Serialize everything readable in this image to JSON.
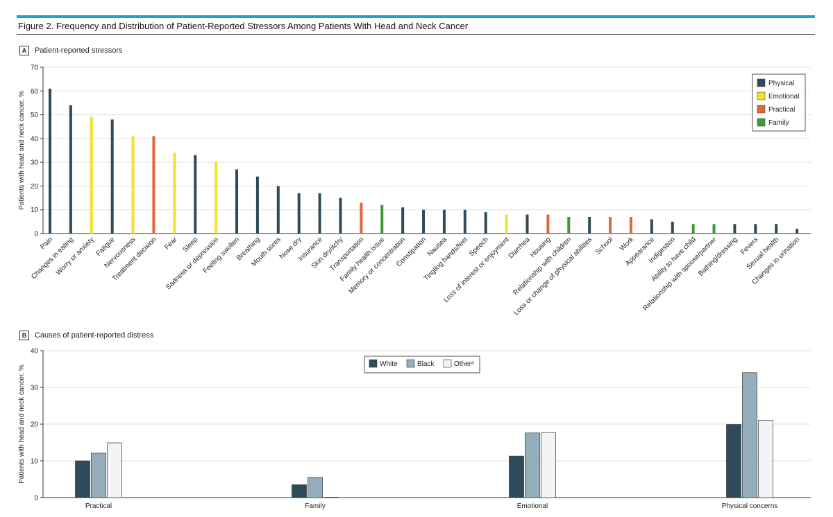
{
  "figure_title": "Figure 2. Frequency and Distribution of Patient-Reported Stressors Among Patients With Head and Neck Cancer",
  "colors": {
    "accent_bar": "#1ba3d8",
    "Physical": "#2f4b5b",
    "Emotional": "#f2e22a",
    "Practical": "#e2663c",
    "Family": "#3d9a36",
    "White": "#2f4b5b",
    "Black": "#94aebc",
    "Other": "#f3f4f5"
  },
  "panel_a": {
    "letter": "A",
    "heading": "Patient-reported stressors"
  },
  "panel_b": {
    "letter": "B",
    "heading": "Causes of patient-reported distress"
  },
  "chart_data": [
    {
      "type": "bar",
      "title": "Patient-reported stressors",
      "ylabel": "Patients with head and neck cancer, %",
      "ylim": [
        0,
        70
      ],
      "yticks": [
        0,
        10,
        20,
        30,
        40,
        50,
        60,
        70
      ],
      "grid": true,
      "legend_position": "top-right",
      "legend": [
        "Physical",
        "Emotional",
        "Practical",
        "Family"
      ],
      "categories": [
        "Pain",
        "Changes in eating",
        "Worry or anxiety",
        "Fatigue",
        "Nervousness",
        "Treatment decision",
        "Fear",
        "Sleep",
        "Sadness or depression",
        "Feeling swollen",
        "Breathing",
        "Mouth sores",
        "Nose dry",
        "Insurance",
        "Skin dry/itchy",
        "Transportation",
        "Family health issue",
        "Memory or concentration",
        "Constipation",
        "Nausea",
        "Tingling hands/feet",
        "Speech",
        "Loss of interest or enjoyment",
        "Diarrhea",
        "Housing",
        "Relationship with children",
        "Loss or change of physical abilities",
        "School",
        "Work",
        "Appearance",
        "Indigestion",
        "Ability to have child",
        "Relationship with spouse/partner",
        "Bathing/dressing",
        "Fevers",
        "Sexual health",
        "Changes in urination"
      ],
      "groups": [
        "Physical",
        "Physical",
        "Emotional",
        "Physical",
        "Emotional",
        "Practical",
        "Emotional",
        "Physical",
        "Emotional",
        "Physical",
        "Physical",
        "Physical",
        "Physical",
        "Physical",
        "Physical",
        "Practical",
        "Family",
        "Physical",
        "Physical",
        "Physical",
        "Physical",
        "Physical",
        "Emotional",
        "Physical",
        "Practical",
        "Family",
        "Physical",
        "Practical",
        "Practical",
        "Physical",
        "Physical",
        "Family",
        "Family",
        "Physical",
        "Physical",
        "Physical",
        "Physical"
      ],
      "values": [
        61,
        54,
        49,
        48,
        41,
        41,
        34,
        33,
        30,
        27,
        24,
        20,
        17,
        17,
        15,
        13,
        12,
        11,
        10,
        10,
        10,
        9,
        8,
        8,
        8,
        7,
        7,
        7,
        7,
        6,
        5,
        4,
        4,
        4,
        4,
        4,
        2
      ]
    },
    {
      "type": "bar",
      "title": "Causes of patient-reported distress",
      "ylabel": "Patients with head and neck cancer, %",
      "ylim": [
        0,
        40
      ],
      "yticks": [
        0,
        10,
        20,
        30,
        40
      ],
      "grid": true,
      "legend_position": "top-center",
      "categories": [
        "Practical",
        "Family",
        "Emotional",
        "Physical concerns"
      ],
      "series": [
        {
          "name": "White",
          "values": [
            10,
            3.5,
            11.3,
            19.9
          ]
        },
        {
          "name": "Black",
          "values": [
            12.1,
            5.5,
            17.6,
            34
          ]
        },
        {
          "name": "Otherᵃ",
          "values": [
            14.9,
            0.1,
            17.7,
            21
          ]
        }
      ]
    }
  ]
}
